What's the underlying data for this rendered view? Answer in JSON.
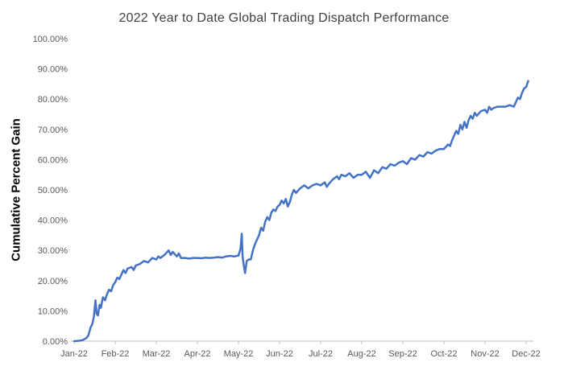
{
  "colors": {
    "line": "#4472C4",
    "axis": "#BFBFBF",
    "tick_text": "#595959",
    "title_text": "#404040"
  },
  "chart_data": {
    "type": "line",
    "title": "2022 Year to Date Global Trading Dispatch Performance",
    "xlabel": "",
    "ylabel": "Cumulative Percent Gain",
    "ylim": [
      0,
      100
    ],
    "xlim_months": [
      0,
      11.2
    ],
    "grid": false,
    "legend_position": "none",
    "x_tick_labels": [
      "Jan-22",
      "Feb-22",
      "Mar-22",
      "Apr-22",
      "May-22",
      "Jun-22",
      "Jul-22",
      "Aug-22",
      "Sep-22",
      "Oct-22",
      "Nov-22",
      "Dec-22"
    ],
    "y_tick_labels": [
      "0.00%",
      "10.00%",
      "20.00%",
      "30.00%",
      "40.00%",
      "50.00%",
      "60.00%",
      "70.00%",
      "80.00%",
      "90.00%",
      "100.00%"
    ],
    "series": [
      {
        "name": "Cumulative Percent Gain",
        "color": "#4472C4",
        "points": [
          [
            0.0,
            0.0
          ],
          [
            0.1,
            0.1
          ],
          [
            0.2,
            0.3
          ],
          [
            0.3,
            1.0
          ],
          [
            0.35,
            2.0
          ],
          [
            0.4,
            4.5
          ],
          [
            0.44,
            5.5
          ],
          [
            0.48,
            8.0
          ],
          [
            0.52,
            13.5
          ],
          [
            0.55,
            9.0
          ],
          [
            0.58,
            8.5
          ],
          [
            0.62,
            12.0
          ],
          [
            0.65,
            11.0
          ],
          [
            0.7,
            14.5
          ],
          [
            0.75,
            13.5
          ],
          [
            0.8,
            15.5
          ],
          [
            0.85,
            17.0
          ],
          [
            0.9,
            16.5
          ],
          [
            0.95,
            18.5
          ],
          [
            1.0,
            19.5
          ],
          [
            1.05,
            21.0
          ],
          [
            1.1,
            20.5
          ],
          [
            1.15,
            22.0
          ],
          [
            1.2,
            23.5
          ],
          [
            1.25,
            22.5
          ],
          [
            1.3,
            24.0
          ],
          [
            1.4,
            24.5
          ],
          [
            1.45,
            23.5
          ],
          [
            1.5,
            25.0
          ],
          [
            1.6,
            25.5
          ],
          [
            1.7,
            26.5
          ],
          [
            1.8,
            26.0
          ],
          [
            1.9,
            27.5
          ],
          [
            2.0,
            27.0
          ],
          [
            2.05,
            28.0
          ],
          [
            2.1,
            27.5
          ],
          [
            2.2,
            28.5
          ],
          [
            2.3,
            30.0
          ],
          [
            2.35,
            28.5
          ],
          [
            2.4,
            29.5
          ],
          [
            2.5,
            28.0
          ],
          [
            2.55,
            29.0
          ],
          [
            2.6,
            27.5
          ],
          [
            2.7,
            27.5
          ],
          [
            2.8,
            27.3
          ],
          [
            2.9,
            27.5
          ],
          [
            3.0,
            27.5
          ],
          [
            3.1,
            27.4
          ],
          [
            3.2,
            27.6
          ],
          [
            3.3,
            27.5
          ],
          [
            3.4,
            27.6
          ],
          [
            3.5,
            27.8
          ],
          [
            3.6,
            27.6
          ],
          [
            3.7,
            28.0
          ],
          [
            3.8,
            28.2
          ],
          [
            3.9,
            28.0
          ],
          [
            4.0,
            28.3
          ],
          [
            4.05,
            30.5
          ],
          [
            4.08,
            35.5
          ],
          [
            4.1,
            28.0
          ],
          [
            4.13,
            25.0
          ],
          [
            4.16,
            22.5
          ],
          [
            4.2,
            26.5
          ],
          [
            4.25,
            27.0
          ],
          [
            4.3,
            27.0
          ],
          [
            4.35,
            30.0
          ],
          [
            4.4,
            32.0
          ],
          [
            4.45,
            33.5
          ],
          [
            4.5,
            35.0
          ],
          [
            4.55,
            37.5
          ],
          [
            4.6,
            36.5
          ],
          [
            4.65,
            39.5
          ],
          [
            4.7,
            41.0
          ],
          [
            4.75,
            40.0
          ],
          [
            4.8,
            42.5
          ],
          [
            4.85,
            43.5
          ],
          [
            4.9,
            43.0
          ],
          [
            4.95,
            44.5
          ],
          [
            5.0,
            45.0
          ],
          [
            5.05,
            46.5
          ],
          [
            5.1,
            45.5
          ],
          [
            5.15,
            47.0
          ],
          [
            5.2,
            44.5
          ],
          [
            5.25,
            46.0
          ],
          [
            5.3,
            48.5
          ],
          [
            5.35,
            50.0
          ],
          [
            5.4,
            49.0
          ],
          [
            5.5,
            50.5
          ],
          [
            5.6,
            51.5
          ],
          [
            5.7,
            50.5
          ],
          [
            5.8,
            51.5
          ],
          [
            5.9,
            52.0
          ],
          [
            6.0,
            51.5
          ],
          [
            6.1,
            52.5
          ],
          [
            6.15,
            51.0
          ],
          [
            6.2,
            52.0
          ],
          [
            6.3,
            53.5
          ],
          [
            6.4,
            54.5
          ],
          [
            6.45,
            53.5
          ],
          [
            6.5,
            55.0
          ],
          [
            6.6,
            54.5
          ],
          [
            6.7,
            55.5
          ],
          [
            6.8,
            54.0
          ],
          [
            6.9,
            55.0
          ],
          [
            7.0,
            55.0
          ],
          [
            7.1,
            56.0
          ],
          [
            7.2,
            54.0
          ],
          [
            7.3,
            56.5
          ],
          [
            7.4,
            55.5
          ],
          [
            7.5,
            57.5
          ],
          [
            7.6,
            57.0
          ],
          [
            7.7,
            58.5
          ],
          [
            7.8,
            58.0
          ],
          [
            7.9,
            59.0
          ],
          [
            8.0,
            59.5
          ],
          [
            8.1,
            58.5
          ],
          [
            8.2,
            60.5
          ],
          [
            8.3,
            60.0
          ],
          [
            8.4,
            61.5
          ],
          [
            8.5,
            61.0
          ],
          [
            8.6,
            62.5
          ],
          [
            8.7,
            62.0
          ],
          [
            8.8,
            63.0
          ],
          [
            8.9,
            63.5
          ],
          [
            9.0,
            63.5
          ],
          [
            9.1,
            65.0
          ],
          [
            9.15,
            64.5
          ],
          [
            9.2,
            66.5
          ],
          [
            9.3,
            69.5
          ],
          [
            9.35,
            68.5
          ],
          [
            9.4,
            71.5
          ],
          [
            9.45,
            70.0
          ],
          [
            9.5,
            72.5
          ],
          [
            9.55,
            70.5
          ],
          [
            9.6,
            73.0
          ],
          [
            9.65,
            74.5
          ],
          [
            9.7,
            73.5
          ],
          [
            9.75,
            75.5
          ],
          [
            9.8,
            74.5
          ],
          [
            9.9,
            76.0
          ],
          [
            10.0,
            76.5
          ],
          [
            10.05,
            75.5
          ],
          [
            10.1,
            77.5
          ],
          [
            10.15,
            76.5
          ],
          [
            10.2,
            77.0
          ],
          [
            10.3,
            77.5
          ],
          [
            10.4,
            77.5
          ],
          [
            10.5,
            77.5
          ],
          [
            10.6,
            78.0
          ],
          [
            10.7,
            77.5
          ],
          [
            10.75,
            79.0
          ],
          [
            10.8,
            80.5
          ],
          [
            10.85,
            80.0
          ],
          [
            10.9,
            82.0
          ],
          [
            10.95,
            83.5
          ],
          [
            11.0,
            84.0
          ],
          [
            11.05,
            86.0
          ]
        ]
      }
    ]
  }
}
